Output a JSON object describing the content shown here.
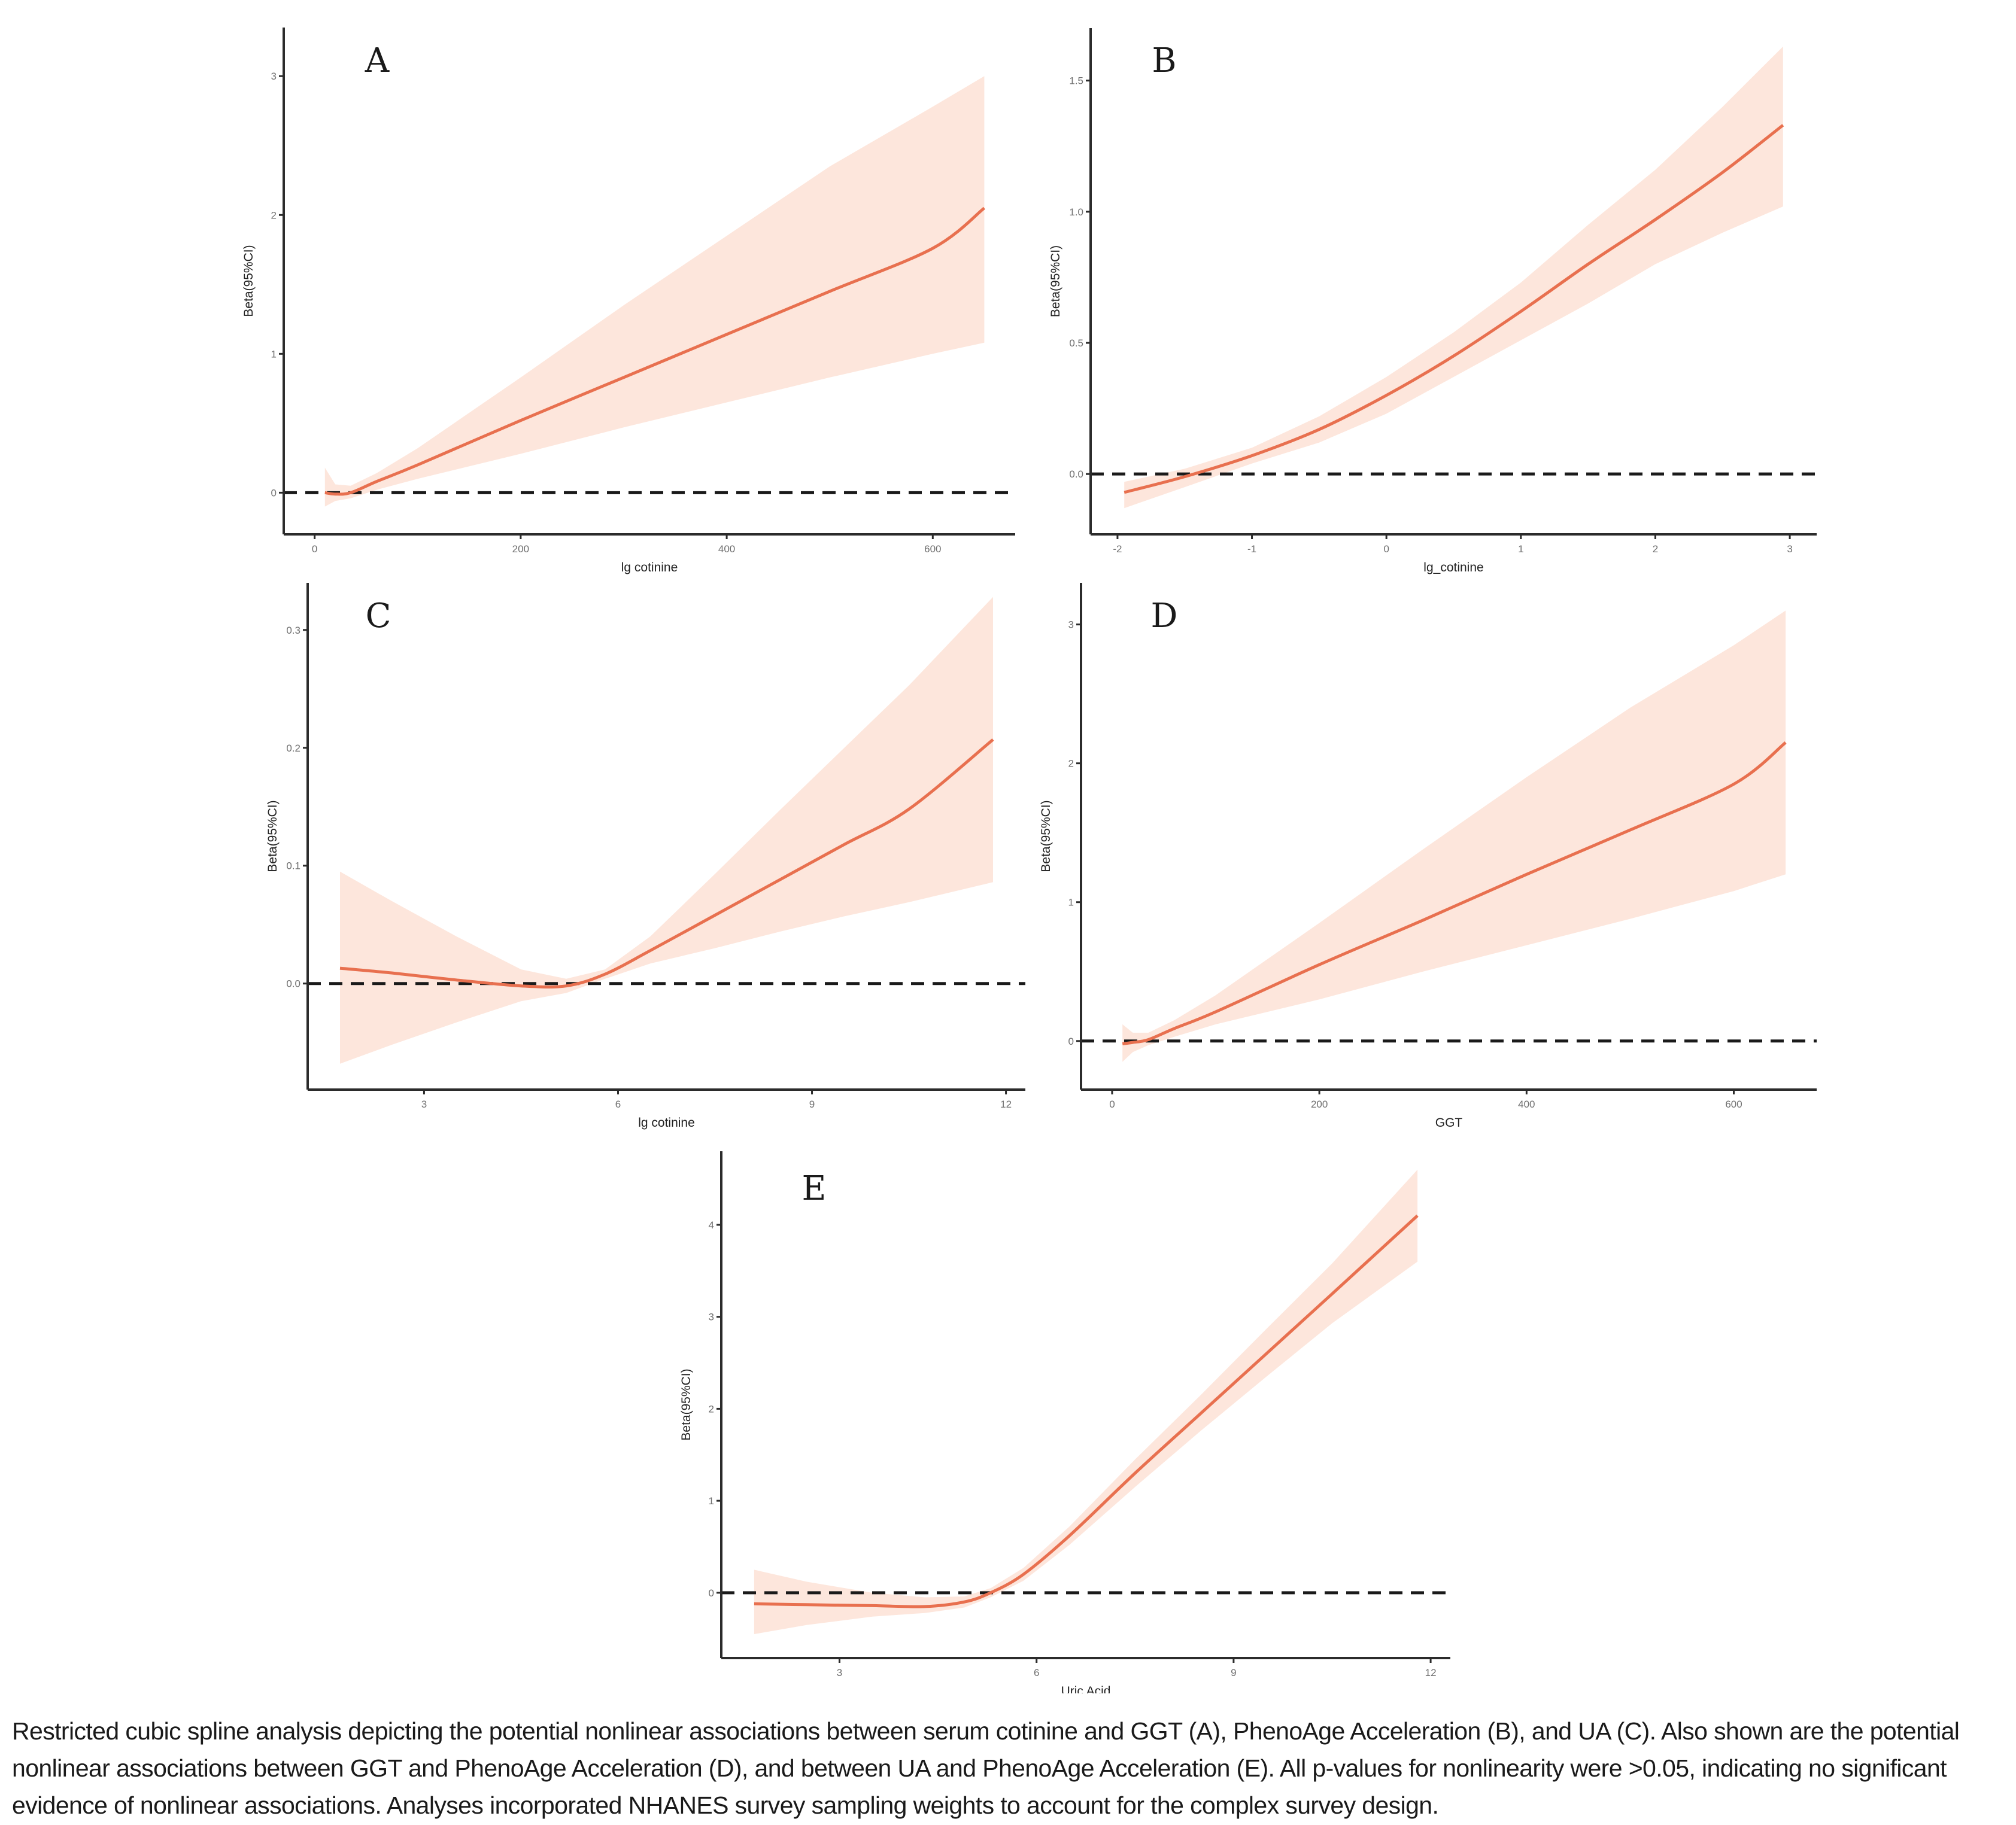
{
  "colors": {
    "line": "#e8704f",
    "band": "#fde6dc",
    "axis": "#2b2b2b",
    "reference": "#1a1a1a"
  },
  "chart_data": [
    {
      "type": "line",
      "panel": "A",
      "xlabel": "lg cotinine",
      "ylabel": "Beta(95%CI)",
      "xlim": [
        -30,
        680
      ],
      "ylim": [
        -0.3,
        3.35
      ],
      "xticks": [
        0,
        200,
        400,
        600
      ],
      "xtick_labels": [
        "0",
        "200",
        "400",
        "600"
      ],
      "yticks": [
        0,
        1,
        2,
        3
      ],
      "ytick_labels": [
        "0",
        "1",
        "2",
        "3"
      ],
      "reference_line": 0,
      "series": [
        {
          "name": "estimate",
          "x": [
            10,
            20,
            35,
            60,
            100,
            200,
            300,
            400,
            500,
            600,
            650
          ],
          "y": [
            0.0,
            -0.01,
            0.0,
            0.08,
            0.2,
            0.52,
            0.83,
            1.14,
            1.45,
            1.76,
            2.05
          ]
        },
        {
          "name": "upper_95ci",
          "x": [
            10,
            20,
            35,
            60,
            100,
            200,
            300,
            400,
            500,
            600,
            650
          ],
          "y": [
            0.18,
            0.06,
            0.05,
            0.14,
            0.32,
            0.83,
            1.35,
            1.85,
            2.35,
            2.78,
            3.0
          ]
        },
        {
          "name": "lower_95ci",
          "x": [
            10,
            20,
            35,
            60,
            100,
            200,
            300,
            400,
            500,
            600,
            650
          ],
          "y": [
            -0.1,
            -0.06,
            -0.04,
            0.02,
            0.1,
            0.28,
            0.47,
            0.65,
            0.83,
            1.0,
            1.08
          ]
        }
      ]
    },
    {
      "type": "line",
      "panel": "B",
      "xlabel": "lg_cotinine",
      "ylabel": "Beta(95%CI)",
      "xlim": [
        -2.2,
        3.2
      ],
      "ylim": [
        -0.23,
        1.7
      ],
      "xticks": [
        -2,
        -1,
        0,
        1,
        2,
        3
      ],
      "xtick_labels": [
        "-2",
        "-1",
        "0",
        "1",
        "2",
        "3"
      ],
      "yticks": [
        0.0,
        0.5,
        1.0,
        1.5
      ],
      "ytick_labels": [
        "0.0",
        "0.5",
        "1.0",
        "1.5"
      ],
      "reference_line": 0,
      "series": [
        {
          "name": "estimate",
          "x": [
            -1.95,
            -1.5,
            -1.0,
            -0.5,
            0.0,
            0.5,
            1.0,
            1.5,
            2.0,
            2.5,
            2.95
          ],
          "y": [
            -0.07,
            -0.01,
            0.07,
            0.17,
            0.3,
            0.45,
            0.62,
            0.8,
            0.97,
            1.15,
            1.33
          ]
        },
        {
          "name": "upper_95ci",
          "x": [
            -1.95,
            -1.5,
            -1.0,
            -0.5,
            0.0,
            0.5,
            1.0,
            1.5,
            2.0,
            2.5,
            2.95
          ],
          "y": [
            -0.03,
            0.02,
            0.1,
            0.22,
            0.37,
            0.54,
            0.73,
            0.95,
            1.16,
            1.4,
            1.63
          ]
        },
        {
          "name": "lower_95ci",
          "x": [
            -1.95,
            -1.5,
            -1.0,
            -0.5,
            0.0,
            0.5,
            1.0,
            1.5,
            2.0,
            2.5,
            2.95
          ],
          "y": [
            -0.13,
            -0.05,
            0.04,
            0.12,
            0.23,
            0.37,
            0.51,
            0.65,
            0.8,
            0.92,
            1.02
          ]
        }
      ]
    },
    {
      "type": "line",
      "panel": "C",
      "xlabel": "lg cotinine",
      "ylabel": "Beta(95%CI)",
      "xlim": [
        1.2,
        12.3
      ],
      "ylim": [
        -0.09,
        0.34
      ],
      "xticks": [
        3,
        6,
        9,
        12
      ],
      "xtick_labels": [
        "3",
        "6",
        "9",
        "12"
      ],
      "yticks": [
        0.0,
        0.1,
        0.2,
        0.3
      ],
      "ytick_labels": [
        "0.0",
        "0.1",
        "0.2",
        "0.3"
      ],
      "reference_line": 0,
      "series": [
        {
          "name": "estimate",
          "x": [
            1.7,
            2.5,
            3.5,
            4.5,
            5.2,
            5.8,
            6.5,
            7.5,
            8.5,
            9.5,
            10.5,
            11.8
          ],
          "y": [
            0.013,
            0.009,
            0.003,
            -0.002,
            -0.002,
            0.008,
            0.028,
            0.058,
            0.088,
            0.118,
            0.148,
            0.207
          ]
        },
        {
          "name": "upper_95ci",
          "x": [
            1.7,
            2.5,
            3.5,
            4.5,
            5.2,
            5.8,
            6.5,
            7.5,
            8.5,
            9.5,
            10.5,
            11.8
          ],
          "y": [
            0.095,
            0.07,
            0.04,
            0.012,
            0.004,
            0.012,
            0.04,
            0.093,
            0.147,
            0.2,
            0.253,
            0.328
          ]
        },
        {
          "name": "lower_95ci",
          "x": [
            1.7,
            2.5,
            3.5,
            4.5,
            5.2,
            5.8,
            6.5,
            7.5,
            8.5,
            9.5,
            10.5,
            11.8
          ],
          "y": [
            -0.068,
            -0.052,
            -0.033,
            -0.015,
            -0.008,
            0.004,
            0.017,
            0.03,
            0.044,
            0.057,
            0.069,
            0.086
          ]
        }
      ]
    },
    {
      "type": "line",
      "panel": "D",
      "xlabel": "GGT",
      "ylabel": "Beta(95%CI)",
      "xlim": [
        -30,
        680
      ],
      "ylim": [
        -0.35,
        3.3
      ],
      "xticks": [
        0,
        200,
        400,
        600
      ],
      "xtick_labels": [
        "0",
        "200",
        "400",
        "600"
      ],
      "yticks": [
        0,
        1,
        2,
        3
      ],
      "ytick_labels": [
        "0",
        "1",
        "2",
        "3"
      ],
      "reference_line": 0,
      "series": [
        {
          "name": "estimate",
          "x": [
            10,
            20,
            35,
            60,
            100,
            200,
            300,
            400,
            500,
            600,
            650
          ],
          "y": [
            -0.02,
            -0.01,
            0.01,
            0.09,
            0.21,
            0.55,
            0.87,
            1.2,
            1.52,
            1.85,
            2.15
          ]
        },
        {
          "name": "upper_95ci",
          "x": [
            10,
            20,
            35,
            60,
            100,
            200,
            300,
            400,
            500,
            600,
            650
          ],
          "y": [
            0.12,
            0.06,
            0.06,
            0.15,
            0.33,
            0.85,
            1.38,
            1.9,
            2.4,
            2.85,
            3.1
          ]
        },
        {
          "name": "lower_95ci",
          "x": [
            10,
            20,
            35,
            60,
            100,
            200,
            300,
            400,
            500,
            600,
            650
          ],
          "y": [
            -0.15,
            -0.08,
            -0.03,
            0.03,
            0.12,
            0.3,
            0.5,
            0.69,
            0.88,
            1.08,
            1.2
          ]
        }
      ]
    },
    {
      "type": "line",
      "panel": "E",
      "xlabel": "Uric Acid",
      "ylabel": "Beta(95%CI)",
      "xlim": [
        1.2,
        12.3
      ],
      "ylim": [
        -0.71,
        4.8
      ],
      "xticks": [
        3,
        6,
        9,
        12
      ],
      "xtick_labels": [
        "3",
        "6",
        "9",
        "12"
      ],
      "yticks": [
        0,
        1,
        2,
        3,
        4
      ],
      "ytick_labels": [
        "0",
        "1",
        "2",
        "3",
        "4"
      ],
      "reference_line": 0,
      "series": [
        {
          "name": "estimate",
          "x": [
            1.7,
            2.5,
            3.5,
            4.3,
            4.9,
            5.3,
            5.8,
            6.5,
            7.5,
            8.5,
            9.5,
            10.5,
            11.8
          ],
          "y": [
            -0.12,
            -0.13,
            -0.14,
            -0.15,
            -0.1,
            0.0,
            0.2,
            0.62,
            1.3,
            1.95,
            2.6,
            3.25,
            4.1
          ]
        },
        {
          "name": "upper_95ci",
          "x": [
            1.7,
            2.5,
            3.5,
            4.3,
            4.9,
            5.3,
            5.8,
            6.5,
            7.5,
            8.5,
            9.5,
            10.5,
            11.8
          ],
          "y": [
            0.25,
            0.12,
            0.0,
            -0.05,
            -0.04,
            0.05,
            0.27,
            0.72,
            1.45,
            2.15,
            2.87,
            3.58,
            4.6
          ]
        },
        {
          "name": "lower_95ci",
          "x": [
            1.7,
            2.5,
            3.5,
            4.3,
            4.9,
            5.3,
            5.8,
            6.5,
            7.5,
            8.5,
            9.5,
            10.5,
            11.8
          ],
          "y": [
            -0.45,
            -0.35,
            -0.26,
            -0.22,
            -0.16,
            -0.05,
            0.13,
            0.52,
            1.15,
            1.76,
            2.35,
            2.93,
            3.6
          ]
        }
      ]
    }
  ],
  "caption": "Restricted cubic spline analysis depicting the potential nonlinear associations between serum cotinine and GGT (A), PhenoAge Acceleration (B), and UA (C). Also shown are the potential nonlinear associations between GGT and PhenoAge Acceleration (D), and between UA and PhenoAge Acceleration (E). All p-values for nonlinearity were >0.05, indicating no significant evidence of nonlinear associations. Analyses incorporated NHANES survey sampling weights to account for the complex survey design."
}
